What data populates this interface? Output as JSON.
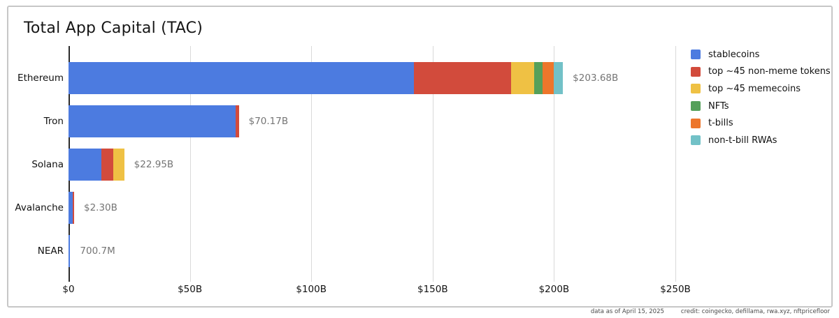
{
  "title": "Total App Capital (TAC)",
  "footer": {
    "data_as_of": "data as of April 15, 2025",
    "credit": "credit: coingecko, defillama, rwa.xyz, nftpricefloor"
  },
  "legend": [
    {
      "label": "stablecoins",
      "color": "#4c7be0"
    },
    {
      "label": "top ~45 non-meme tokens",
      "color": "#d24b3c"
    },
    {
      "label": "top ~45 memecoins",
      "color": "#efc144"
    },
    {
      "label": "NFTs",
      "color": "#55a05a"
    },
    {
      "label": "t-bills",
      "color": "#ed762b"
    },
    {
      "label": "non-t-bill RWAs",
      "color": "#72c1c7"
    }
  ],
  "chart_data": {
    "type": "bar",
    "orientation": "horizontal",
    "stacked": true,
    "title": "Total App Capital (TAC)",
    "categories": [
      "Ethereum",
      "Tron",
      "Solana",
      "Avalanche",
      "NEAR"
    ],
    "series": [
      {
        "name": "stablecoins",
        "color": "#4c7be0",
        "values": [
          142.4,
          68.7,
          13.6,
          1.8,
          0.7
        ]
      },
      {
        "name": "top ~45 non-meme tokens",
        "color": "#d24b3c",
        "values": [
          39.9,
          1.47,
          4.9,
          0.5,
          0
        ]
      },
      {
        "name": "top ~45 memecoins",
        "color": "#efc144",
        "values": [
          9.5,
          0,
          4.45,
          0,
          0
        ]
      },
      {
        "name": "NFTs",
        "color": "#55a05a",
        "values": [
          3.5,
          0,
          0,
          0,
          0
        ]
      },
      {
        "name": "t-bills",
        "color": "#ed762b",
        "values": [
          4.6,
          0,
          0,
          0,
          0
        ]
      },
      {
        "name": "non-t-bill RWAs",
        "color": "#72c1c7",
        "values": [
          3.78,
          0,
          0,
          0,
          0
        ]
      }
    ],
    "bar_totals": [
      203.68,
      70.17,
      22.95,
      2.3,
      0.7007
    ],
    "bar_labels": [
      "$203.68B",
      "$70.17B",
      "$22.95B",
      "$2.30B",
      "700.7M"
    ],
    "x_ticks": [
      {
        "label": "$0",
        "value": 0
      },
      {
        "label": "$50B",
        "value": 50
      },
      {
        "label": "$100B",
        "value": 100
      },
      {
        "label": "$150B",
        "value": 150
      },
      {
        "label": "$200B",
        "value": 200
      },
      {
        "label": "$250B",
        "value": 250
      }
    ],
    "xlim": [
      0,
      250
    ],
    "unit": "USD billions",
    "grid": "vertical",
    "legend_position": "top-right"
  }
}
